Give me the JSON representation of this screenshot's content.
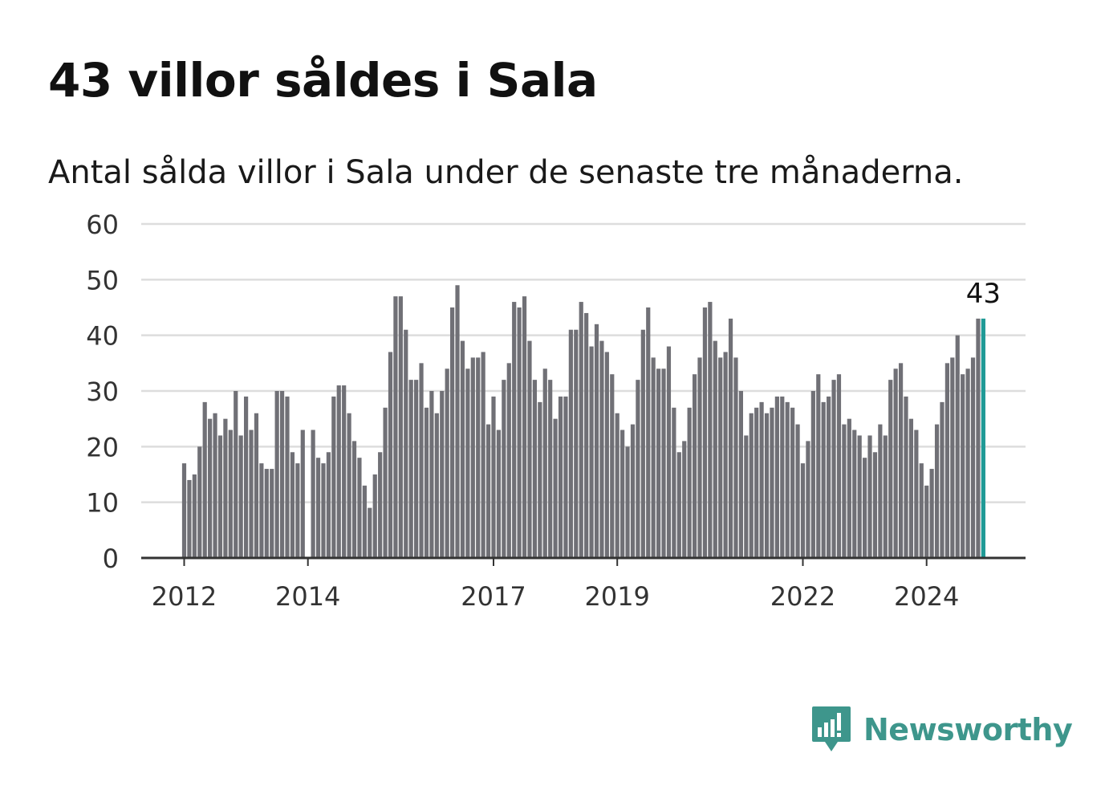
{
  "title": "43 villor såldes i Sala",
  "subtitle": "Antal sålda villor i Sala under de senaste tre månaderna.",
  "brand": {
    "name": "Newsworthy",
    "logo_icon": "newsworthy-chart-bubble-icon"
  },
  "colors": {
    "bar": "#707076",
    "highlight": "#1f9a96",
    "grid": "#dddddd",
    "axis": "#333333",
    "brand": "#3e968c"
  },
  "chart_data": {
    "type": "bar",
    "ylim": [
      0,
      60
    ],
    "yticks": [
      "0",
      "10",
      "20",
      "30",
      "40",
      "50",
      "60"
    ],
    "grid": true,
    "x_tick_labels": [
      {
        "label": "2012",
        "index": 0
      },
      {
        "label": "2014",
        "index": 24
      },
      {
        "label": "2017",
        "index": 60
      },
      {
        "label": "2019",
        "index": 84
      },
      {
        "label": "2022",
        "index": 120
      },
      {
        "label": "2024",
        "index": 144
      }
    ],
    "highlight_label": "43",
    "values": [
      17,
      14,
      15,
      20,
      28,
      25,
      26,
      22,
      25,
      23,
      30,
      22,
      29,
      23,
      26,
      17,
      16,
      16,
      30,
      30,
      29,
      19,
      17,
      23,
      null,
      23,
      18,
      17,
      19,
      29,
      31,
      31,
      26,
      21,
      18,
      13,
      9,
      15,
      19,
      27,
      37,
      47,
      47,
      41,
      32,
      32,
      35,
      27,
      30,
      26,
      30,
      34,
      45,
      49,
      39,
      34,
      36,
      36,
      37,
      24,
      29,
      23,
      32,
      35,
      46,
      45,
      47,
      39,
      32,
      28,
      34,
      32,
      25,
      29,
      29,
      41,
      41,
      46,
      44,
      38,
      42,
      39,
      37,
      33,
      26,
      23,
      20,
      24,
      32,
      41,
      45,
      36,
      34,
      34,
      38,
      27,
      19,
      21,
      27,
      33,
      36,
      45,
      46,
      39,
      36,
      37,
      43,
      36,
      30,
      22,
      26,
      27,
      28,
      26,
      27,
      29,
      29,
      28,
      27,
      24,
      17,
      21,
      30,
      33,
      28,
      29,
      32,
      33,
      24,
      25,
      23,
      22,
      18,
      22,
      19,
      24,
      22,
      32,
      34,
      35,
      29,
      25,
      23,
      17,
      13,
      16,
      24,
      28,
      35,
      36,
      40,
      33,
      34,
      36,
      43,
      43
    ]
  }
}
